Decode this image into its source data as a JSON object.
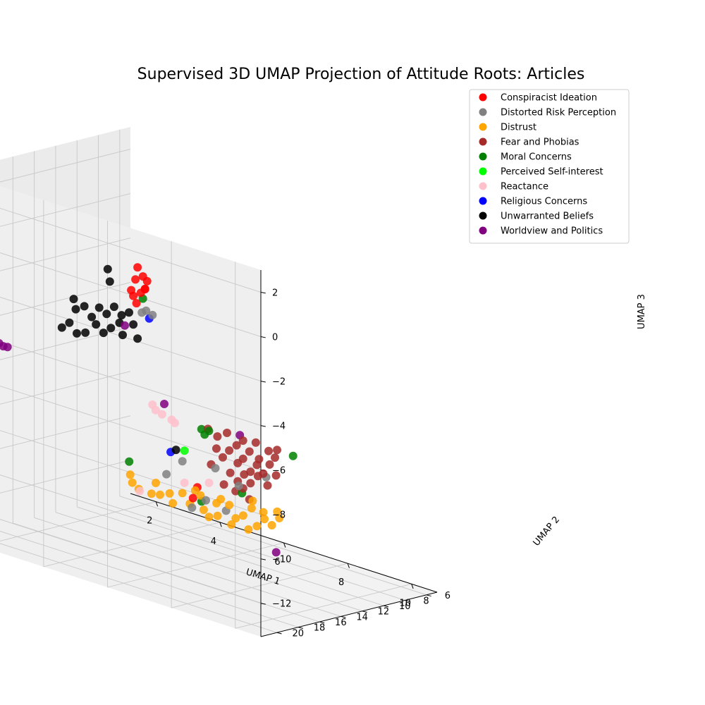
{
  "chart_data": {
    "type": "scatter",
    "projection": "3d",
    "title": "Supervised 3D UMAP Projection of Attitude Roots: Articles",
    "xlabel": "UMAP 1",
    "ylabel": "UMAP 2",
    "zlabel": "UMAP 3",
    "xlim": [
      1.2,
      10.8
    ],
    "ylim": [
      5.0,
      21.5
    ],
    "zlim": [
      -13.5,
      3.0
    ],
    "xticks": [
      "2",
      "4",
      "6",
      "8",
      "10"
    ],
    "yticks": [
      "6",
      "8",
      "10",
      "12",
      "14",
      "16",
      "18",
      "20"
    ],
    "zticks": [
      "2",
      "0",
      "−2",
      "−4",
      "−6",
      "−8",
      "−10",
      "−12"
    ],
    "grid": true,
    "legend_position": "upper-right",
    "series": [
      {
        "name": "Conspiracist Ideation",
        "color": "#ff0000",
        "points": [
          [
            4.6,
            14.5,
            -0.6
          ],
          [
            4.8,
            14.6,
            -0.9
          ],
          [
            4.5,
            14.4,
            -1.2
          ],
          [
            4.9,
            14.7,
            -1.4
          ],
          [
            4.7,
            14.5,
            -1.7
          ],
          [
            4.4,
            14.3,
            -2.0
          ],
          [
            5.0,
            14.8,
            -1.0
          ],
          [
            4.6,
            14.6,
            -2.2
          ],
          [
            4.8,
            14.4,
            -1.5
          ],
          [
            4.3,
            14.2,
            -1.8
          ],
          [
            5.3,
            11.0,
            -10.6
          ],
          [
            5.1,
            10.8,
            -11.2
          ]
        ]
      },
      {
        "name": "Distorted Risk Perception",
        "color": "#808080",
        "points": [
          [
            4.9,
            14.6,
            -2.4
          ],
          [
            5.1,
            14.6,
            -2.5
          ],
          [
            4.7,
            14.4,
            -2.6
          ],
          [
            5.0,
            11.5,
            -9.5
          ],
          [
            4.4,
            11.2,
            -10.4
          ],
          [
            5.4,
            10.5,
            -11.2
          ],
          [
            6.0,
            10.4,
            -11.4
          ],
          [
            5.0,
            10.6,
            -11.7
          ],
          [
            7.0,
            12.2,
            -9.6
          ],
          [
            6.2,
            12.0,
            -9.2
          ],
          [
            10.3,
            19.5,
            -6.8
          ]
        ]
      },
      {
        "name": "Distrust",
        "color": "#ffa500",
        "points": [
          [
            3.2,
            11.0,
            -11.0
          ],
          [
            3.3,
            11.1,
            -11.3
          ],
          [
            3.5,
            11.1,
            -11.5
          ],
          [
            3.8,
            10.8,
            -11.6
          ],
          [
            4.1,
            10.9,
            -11.5
          ],
          [
            4.4,
            10.9,
            -11.3
          ],
          [
            4.5,
            10.9,
            -11.7
          ],
          [
            4.8,
            10.9,
            -11.1
          ],
          [
            5.0,
            10.8,
            -11.5
          ],
          [
            5.3,
            10.7,
            -11.0
          ],
          [
            5.4,
            10.7,
            -11.6
          ],
          [
            5.7,
            10.4,
            -11.2
          ],
          [
            5.8,
            10.6,
            -11.7
          ],
          [
            6.1,
            10.4,
            -11.1
          ],
          [
            6.3,
            10.4,
            -11.6
          ],
          [
            6.5,
            10.3,
            -11.4
          ],
          [
            6.7,
            10.1,
            -11.0
          ],
          [
            6.9,
            10.2,
            -11.7
          ],
          [
            7.1,
            10.1,
            -11.3
          ],
          [
            7.3,
            10.0,
            -11.5
          ],
          [
            7.5,
            9.9,
            -11.1
          ],
          [
            5.2,
            10.9,
            -10.8
          ],
          [
            5.5,
            10.5,
            -11.9
          ],
          [
            6.1,
            10.2,
            -12.0
          ],
          [
            6.6,
            10.1,
            -12.0
          ],
          [
            4.0,
            11.0,
            -11.0
          ],
          [
            5.9,
            10.6,
            -10.9
          ],
          [
            6.8,
            10.3,
            -10.6
          ],
          [
            7.6,
            10.4,
            -10.7
          ],
          [
            7.2,
            10.5,
            -10.9
          ]
        ]
      },
      {
        "name": "Fear and Phobias",
        "color": "#a52a2a",
        "points": [
          [
            6.5,
            13.6,
            -7.1
          ],
          [
            6.8,
            13.6,
            -7.3
          ],
          [
            7.1,
            13.6,
            -7.0
          ],
          [
            7.3,
            13.3,
            -7.5
          ],
          [
            7.5,
            13.3,
            -7.2
          ],
          [
            7.7,
            13.3,
            -7.6
          ],
          [
            7.9,
            13.3,
            -7.1
          ],
          [
            8.0,
            13.3,
            -7.8
          ],
          [
            8.3,
            13.3,
            -7.3
          ],
          [
            8.5,
            13.3,
            -7.5
          ],
          [
            8.6,
            13.4,
            -7.1
          ],
          [
            6.6,
            13.1,
            -8.0
          ],
          [
            6.8,
            13.1,
            -8.3
          ],
          [
            7.0,
            13.1,
            -7.9
          ],
          [
            7.2,
            12.9,
            -8.4
          ],
          [
            7.4,
            13.0,
            -8.1
          ],
          [
            7.6,
            12.9,
            -8.6
          ],
          [
            7.8,
            12.9,
            -8.2
          ],
          [
            8.0,
            12.9,
            -8.5
          ],
          [
            8.2,
            12.9,
            -8.0
          ],
          [
            8.4,
            12.9,
            -8.4
          ],
          [
            6.9,
            12.7,
            -9.0
          ],
          [
            7.1,
            12.6,
            -9.3
          ],
          [
            7.3,
            12.6,
            -8.9
          ],
          [
            7.5,
            12.6,
            -9.2
          ],
          [
            7.7,
            12.5,
            -8.8
          ],
          [
            7.0,
            12.5,
            -9.8
          ],
          [
            7.2,
            12.4,
            -9.6
          ],
          [
            6.6,
            12.4,
            -9.7
          ],
          [
            7.4,
            12.4,
            -10.0
          ],
          [
            6.3,
            12.7,
            -8.9
          ],
          [
            8.1,
            12.8,
            -9.0
          ]
        ]
      },
      {
        "name": "Moral Concerns",
        "color": "#008000",
        "points": [
          [
            6.3,
            13.6,
            -7.2
          ],
          [
            6.4,
            13.6,
            -7.4
          ],
          [
            6.5,
            13.5,
            -7.2
          ],
          [
            8.9,
            12.8,
            -7.3
          ],
          [
            4.8,
            14.6,
            -1.9
          ],
          [
            3.2,
            11.1,
            -10.4
          ],
          [
            5.4,
            10.9,
            -11.2
          ],
          [
            7.2,
            12.5,
            -9.8
          ]
        ]
      },
      {
        "name": "Perceived Self-interest",
        "color": "#00ff00",
        "points": [
          [
            5.3,
            12.2,
            -8.8
          ]
        ]
      },
      {
        "name": "Reactance",
        "color": "#ffc0cb",
        "points": [
          [
            5.0,
            14.0,
            -6.9
          ],
          [
            5.2,
            14.0,
            -7.0
          ],
          [
            5.5,
            14.0,
            -7.1
          ],
          [
            4.9,
            14.0,
            -6.7
          ],
          [
            5.6,
            14.0,
            -7.2
          ],
          [
            5.7,
            11.1,
            -10.2
          ],
          [
            5.0,
            11.3,
            -10.5
          ],
          [
            3.5,
            11.0,
            -11.6
          ]
        ]
      },
      {
        "name": "Religious Concerns",
        "color": "#0000ff",
        "points": [
          [
            4.7,
            11.7,
            -9.2
          ],
          [
            5.0,
            14.6,
            -2.7
          ]
        ]
      },
      {
        "name": "Unwarranted Beliefs",
        "color": "#000000",
        "points": [
          [
            2.9,
            15.4,
            -2.7
          ],
          [
            3.2,
            15.3,
            -2.9
          ],
          [
            3.0,
            15.5,
            -3.1
          ],
          [
            3.4,
            15.2,
            -3.3
          ],
          [
            3.6,
            15.1,
            -2.8
          ],
          [
            3.8,
            15.0,
            -3.0
          ],
          [
            4.0,
            14.9,
            -2.6
          ],
          [
            4.2,
            14.8,
            -2.9
          ],
          [
            4.4,
            14.7,
            -2.7
          ],
          [
            4.1,
            14.7,
            -3.3
          ],
          [
            3.5,
            15.1,
            -3.6
          ],
          [
            3.7,
            15.0,
            -3.9
          ],
          [
            3.9,
            14.9,
            -3.6
          ],
          [
            4.5,
            14.6,
            -3.2
          ],
          [
            3.8,
            14.9,
            -1.0
          ],
          [
            3.9,
            15.0,
            -1.5
          ],
          [
            2.8,
            15.5,
            -3.8
          ],
          [
            2.6,
            15.6,
            -4.1
          ],
          [
            3.2,
            15.2,
            -4.1
          ],
          [
            4.6,
            14.5,
            -3.8
          ],
          [
            4.2,
            14.7,
            -3.8
          ],
          [
            4.9,
            11.8,
            -9.0
          ],
          [
            3.0,
            15.4,
            -4.2
          ]
        ]
      },
      {
        "name": "Worldview and Politics",
        "color": "#800080",
        "points": [
          [
            1.1,
            18.6,
            -4.0
          ],
          [
            1.2,
            18.5,
            -4.3
          ],
          [
            1.3,
            18.4,
            -4.6
          ],
          [
            1.4,
            18.3,
            -4.8
          ],
          [
            1.5,
            18.2,
            -5.0
          ],
          [
            1.6,
            18.1,
            -5.1
          ],
          [
            1.7,
            18.0,
            -5.1
          ],
          [
            4.2,
            14.5,
            -3.4
          ],
          [
            4.9,
            12.9,
            -6.8
          ],
          [
            7.4,
            13.3,
            -7.0
          ],
          [
            7.5,
            10.2,
            -12.6
          ]
        ]
      }
    ]
  }
}
